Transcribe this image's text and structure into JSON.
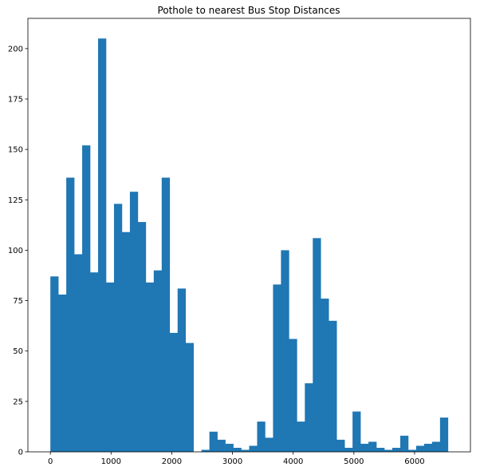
{
  "chart_data": {
    "type": "bar",
    "title": "Pothole to nearest Bus Stop Distances",
    "xlabel": "",
    "ylabel": "",
    "bar_color": "#1f77b4",
    "xlim": [
      -370,
      6920
    ],
    "ylim": [
      0,
      215
    ],
    "bin_start": 0,
    "bin_width": 131,
    "counts": [
      87,
      78,
      136,
      98,
      152,
      89,
      205,
      84,
      123,
      109,
      129,
      114,
      84,
      90,
      136,
      59,
      81,
      54,
      0,
      1,
      10,
      6,
      4,
      2,
      1,
      3,
      15,
      7,
      83,
      100,
      56,
      15,
      34,
      106,
      76,
      65,
      6,
      2,
      20,
      4,
      5,
      2,
      1,
      2,
      8,
      1,
      3,
      4,
      5,
      17
    ],
    "x_ticks": [
      0,
      1000,
      2000,
      3000,
      4000,
      5000,
      6000
    ],
    "x_tick_labels": [
      "0",
      "1000",
      "2000",
      "3000",
      "4000",
      "5000",
      "6000"
    ],
    "y_ticks": [
      0,
      25,
      50,
      75,
      100,
      125,
      150,
      175,
      200
    ],
    "y_tick_labels": [
      "0",
      "25",
      "50",
      "75",
      "100",
      "125",
      "150",
      "175",
      "200"
    ]
  }
}
